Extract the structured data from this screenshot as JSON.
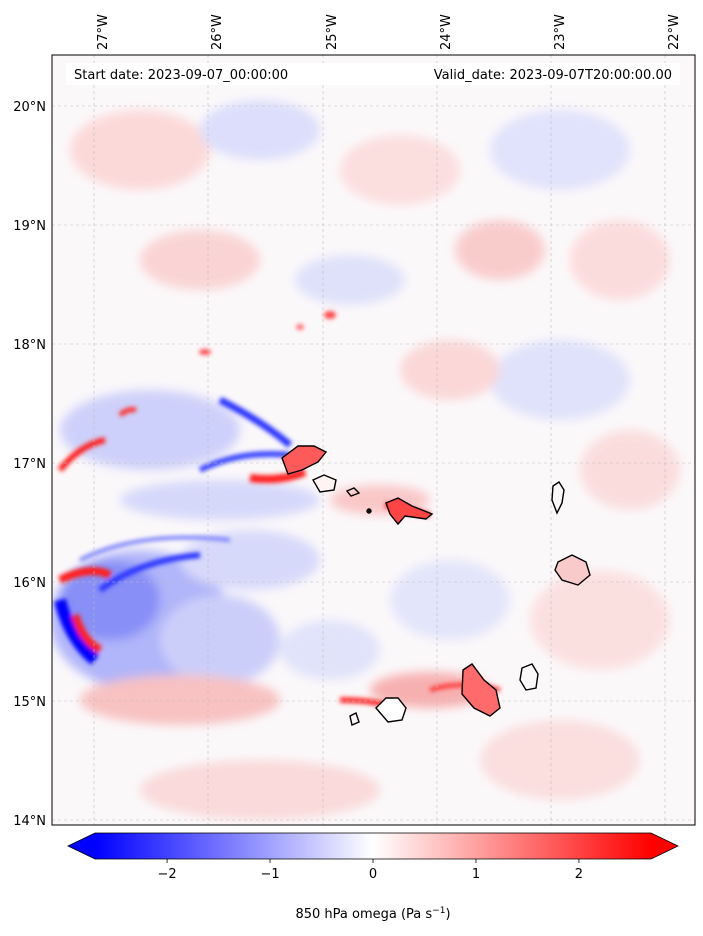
{
  "header": {
    "start_date": "Start date: 2023-09-07_00:00:00",
    "valid_date": "Valid_date: 2023-09-07T20:00:00.00"
  },
  "map": {
    "variable": "850 hPa omega",
    "units": "Pa s",
    "units_exponent": "−1",
    "lon_range": [
      -27.35,
      -21.7
    ],
    "lat_range": [
      13.95,
      20.4
    ],
    "lon_ticks": [
      "27°W",
      "26°W",
      "25°W",
      "24°W",
      "23°W",
      "22°W"
    ],
    "lat_ticks": [
      "20°N",
      "19°N",
      "18°N",
      "17°N",
      "16°N",
      "15°N",
      "14°N"
    ],
    "gridlines": true,
    "colormap": "bwr",
    "colors": {
      "min": "#0000ff",
      "mid": "#ffffff",
      "max": "#ff0000",
      "coast": "#000000",
      "grid": "#b0b0b0"
    }
  },
  "colorbar": {
    "ticks": [
      "−2",
      "−1",
      "0",
      "1",
      "2"
    ],
    "tick_values": [
      -2,
      -1,
      0,
      1,
      2
    ],
    "range": [
      -2.7,
      2.7
    ],
    "extend": "both",
    "label_prefix": "850 hPa omega (Pa s",
    "label_exponent": "−1",
    "label_suffix": ")"
  }
}
